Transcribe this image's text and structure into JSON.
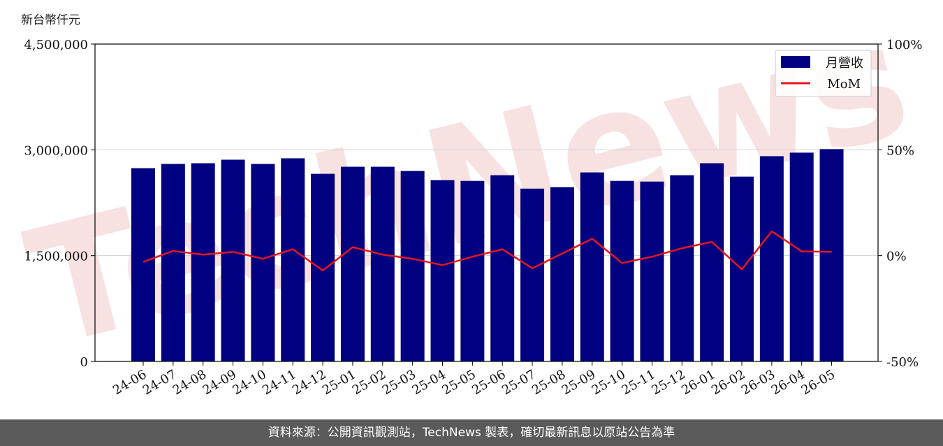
{
  "unit_label": "新台幣仟元",
  "watermark": "TechNews",
  "footer": "資料來源：公開資訊觀測站，TechNews 製表，確切最新訊息以原站公告為準",
  "colors": {
    "bar": "#000080",
    "line": "#e8141c",
    "grid": "#d0d0d0",
    "footer_bg": "#5a5a5a",
    "watermark": "#f2c8c8"
  },
  "chart_data": {
    "type": "bar",
    "categories": [
      "24-06",
      "24-07",
      "24-08",
      "24-09",
      "24-10",
      "24-11",
      "24-12",
      "25-01",
      "25-02",
      "25-03",
      "25-04",
      "25-05",
      "25-06",
      "25-07",
      "25-08",
      "25-09",
      "25-10",
      "25-11",
      "25-12",
      "26-01",
      "26-02",
      "26-03",
      "26-04",
      "26-05"
    ],
    "series": [
      {
        "name": "月營收",
        "type": "bar",
        "axis": "left",
        "values": [
          2740000,
          2800000,
          2810000,
          2860000,
          2800000,
          2880000,
          2660000,
          2760000,
          2760000,
          2700000,
          2570000,
          2560000,
          2640000,
          2450000,
          2470000,
          2680000,
          2560000,
          2550000,
          2640000,
          2810000,
          2620000,
          2910000,
          2960000,
          3010000
        ]
      },
      {
        "name": "MoM",
        "type": "line",
        "axis": "right",
        "values": [
          -3,
          2.2,
          0.5,
          1.8,
          -1.5,
          3,
          -7,
          4,
          0.5,
          -1.5,
          -4.5,
          -0.5,
          3,
          -6,
          1,
          8,
          -3.5,
          -0.5,
          3.5,
          6.5,
          -6.5,
          11.5,
          2,
          1.8
        ]
      }
    ],
    "left_axis": {
      "ylim": [
        0,
        4500000
      ],
      "ticks": [
        0,
        1500000,
        3000000,
        4500000
      ],
      "tick_labels": [
        "0",
        "1,500,000",
        "3,000,000",
        "4,500,000"
      ]
    },
    "right_axis": {
      "ylim": [
        -50,
        100
      ],
      "ticks": [
        -50,
        0,
        50,
        100
      ],
      "tick_labels": [
        "-50%",
        "0%",
        "50%",
        "100%"
      ]
    },
    "grid": true,
    "legend_position": "top-right"
  }
}
